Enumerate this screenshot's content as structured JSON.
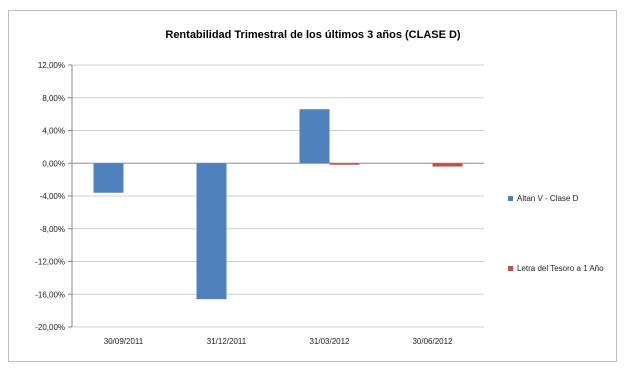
{
  "chart_data": {
    "type": "bar",
    "title": "Rentabilidad Trimestral de los últimos 3 años (CLASE D)",
    "categories": [
      "30/09/2011",
      "31/12/2011",
      "31/03/2012",
      "30/06/2012"
    ],
    "series": [
      {
        "name": "Altan V - Clase D",
        "color": "#4f81bd",
        "values": [
          -3.6,
          -16.6,
          6.6,
          0.0
        ]
      },
      {
        "name": "Letra del Tesoro a 1 Año",
        "color": "#c0504d",
        "values": [
          0.0,
          0.0,
          -0.1,
          -0.4
        ]
      }
    ],
    "ylim": [
      -20,
      12
    ],
    "yticks": [
      "12,00%",
      "8,00%",
      "4,00%",
      "0,00%",
      "-4,00%",
      "-8,00%",
      "-12,00%",
      "-16,00%",
      "-20,00%"
    ],
    "grid": true,
    "legend_position": "right"
  }
}
